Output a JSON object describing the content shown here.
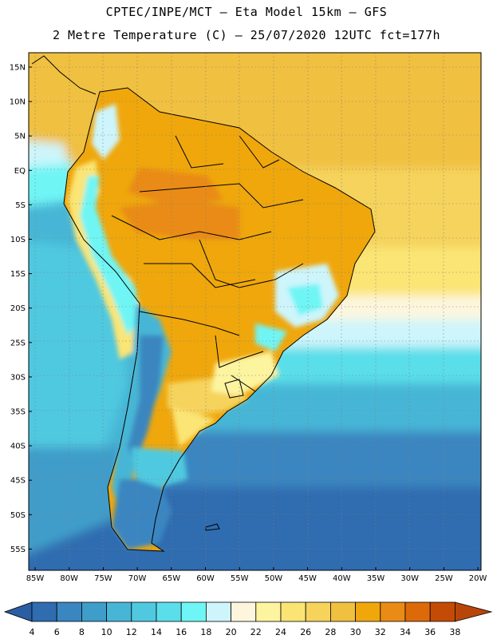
{
  "header": {
    "line1": "CPTEC/INPE/MCT –  Eta Model 15km – GFS",
    "line2": "2 Metre Temperature (C) – 25/07/2020 12UTC fct=177h"
  },
  "map": {
    "lat_labels": [
      "15N",
      "10N",
      "5N",
      "EQ",
      "5S",
      "10S",
      "15S",
      "20S",
      "25S",
      "30S",
      "35S",
      "40S",
      "45S",
      "50S",
      "55S"
    ],
    "lon_labels": [
      "85W",
      "80W",
      "75W",
      "70W",
      "65W",
      "60W",
      "55W",
      "50W",
      "45W",
      "40W",
      "35W",
      "30W",
      "25W",
      "20W"
    ]
  },
  "colorbar": {
    "levels": [
      "4",
      "6",
      "8",
      "10",
      "12",
      "14",
      "16",
      "18",
      "20",
      "22",
      "24",
      "26",
      "28",
      "30",
      "32",
      "34",
      "36",
      "38"
    ],
    "colors": [
      "#2f6cb0",
      "#3a86c0",
      "#3f9dc9",
      "#47b6d6",
      "#50c9e0",
      "#5adeea",
      "#6ff5f5",
      "#cdf5fb",
      "#fdf6dd",
      "#fdf4a0",
      "#fae574",
      "#f6d35b",
      "#f0c040",
      "#efa70c",
      "#e98b14",
      "#dd6a08",
      "#c44b06"
    ],
    "under_color": "#2a5ea3",
    "over_color": "#b8460a"
  }
}
